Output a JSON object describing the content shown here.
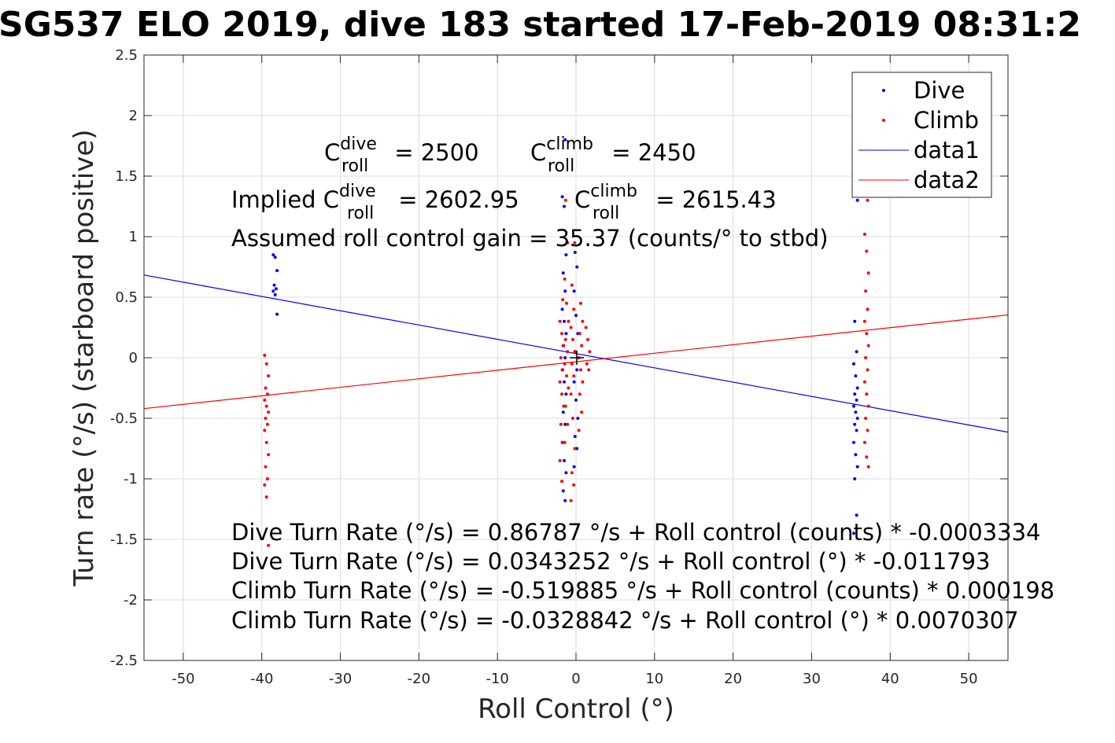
{
  "chart_data": {
    "type": "scatter",
    "title": "SG537 ELO 2019, dive 183 started 17-Feb-2019 08:31:2",
    "xlabel": "Roll Control (°)",
    "ylabel": "Turn rate (°/s) (starboard positive)",
    "xlim": [
      -55,
      55
    ],
    "ylim": [
      -2.5,
      2.5
    ],
    "xticks": [
      -50,
      -40,
      -30,
      -20,
      -10,
      0,
      10,
      20,
      30,
      40,
      50
    ],
    "yticks": [
      -2.5,
      -2,
      -1.5,
      -1,
      -0.5,
      0,
      0.5,
      1,
      1.5,
      2,
      2.5
    ],
    "grid": true,
    "legend_location": "top-right",
    "legend": [
      "Dive",
      "Climb",
      "data1",
      "data2"
    ],
    "colors": {
      "dive": "#0000ff",
      "climb": "#ff0000"
    },
    "series": [
      {
        "name": "Dive",
        "kind": "points",
        "clusters": [
          {
            "x": -38.3,
            "y_values": [
              0.85,
              0.83,
              0.72,
              0.6,
              0.57,
              0.55,
              0.52,
              0.36
            ]
          },
          {
            "x": -1.5,
            "y_values": [
              1.8,
              1.33,
              1.25,
              0.85,
              0.7,
              0.55,
              0.4,
              0.3,
              0.2,
              0.1,
              0.0,
              -0.1,
              -0.2,
              -0.3,
              -0.45,
              -0.55,
              -0.7,
              -0.85,
              -0.95,
              -1.1,
              -1.18
            ]
          },
          {
            "x": 0,
            "y_values": [
              0.87,
              0.75,
              0.55,
              0.35,
              0.2,
              0.05,
              -0.1,
              -0.2,
              -0.35,
              -0.5,
              -0.65,
              -0.75,
              -0.9
            ]
          },
          {
            "x": 35.6,
            "y_values": [
              1.3,
              0.3,
              0.05,
              -0.05,
              -0.15,
              -0.25,
              -0.3,
              -0.35,
              -0.4,
              -0.45,
              -0.5,
              -0.55,
              -0.6,
              -0.7,
              -0.8,
              -0.9,
              -1.0,
              -1.3,
              -1.45
            ]
          }
        ]
      },
      {
        "name": "Climb",
        "kind": "points",
        "clusters": [
          {
            "x": -39.4,
            "y_values": [
              0.02,
              -0.05,
              -0.15,
              -0.25,
              -0.3,
              -0.35,
              -0.4,
              -0.45,
              -0.5,
              -0.55,
              -0.6,
              -0.7,
              -0.8,
              -0.9,
              -1.0,
              -1.05,
              -1.15,
              -1.55
            ]
          },
          {
            "x": -1.8,
            "y_values": [
              0.48,
              0.3,
              0.2,
              0.1,
              0.0,
              -0.1,
              -0.2,
              -0.3,
              -0.4,
              -0.55,
              -0.7,
              -0.85,
              -1.02
            ]
          },
          {
            "x": -1.2,
            "y_values": [
              1.3,
              0.95,
              0.65,
              0.45,
              0.3,
              0.15,
              0.05,
              -0.05,
              -0.15,
              -0.25,
              -0.4,
              -0.55,
              -0.7
            ]
          },
          {
            "x": -0.4,
            "y_values": [
              0.95,
              0.6,
              0.4,
              0.25,
              0.15,
              0.05,
              -0.05,
              -0.15,
              -0.3,
              -0.5,
              -0.75,
              -0.95,
              -1.05,
              -1.18
            ]
          },
          {
            "x": 0.6,
            "y_values": [
              0.45,
              0.3,
              0.2,
              0.1,
              0.0,
              -0.1,
              -0.2,
              -0.3,
              -0.45,
              -0.6
            ]
          },
          {
            "x": 1.5,
            "y_values": [
              0.25,
              0.15,
              0.05,
              -0.05,
              -0.1
            ]
          },
          {
            "x": 37.0,
            "y_values": [
              1.3,
              1.02,
              0.88,
              0.7,
              0.55,
              0.4,
              0.3,
              0.2,
              0.1,
              0.0,
              -0.1,
              -0.2,
              -0.3,
              -0.4,
              -0.5,
              -0.6,
              -0.7,
              -0.82,
              -0.9
            ]
          }
        ]
      },
      {
        "name": "data1",
        "kind": "line",
        "x": [
          -55,
          55
        ],
        "y": [
          0.683,
          -0.614
        ]
      },
      {
        "name": "data2",
        "kind": "line",
        "x": [
          -55,
          55
        ],
        "y": [
          -0.42,
          0.354
        ]
      }
    ],
    "annotations": {
      "c_roll_dive": {
        "base": "C",
        "sup": "dive",
        "sub": "roll",
        "rest": " = 2500"
      },
      "c_roll_climb": {
        "base": "C",
        "sup": "climb",
        "sub": "roll",
        "rest": " = 2450"
      },
      "implied_dive": {
        "prefix": "Implied C",
        "sup": "dive",
        "sub": "roll",
        "rest": " = 2602.95"
      },
      "implied_climb": {
        "base": "C",
        "sup": "climb",
        "sub": "roll",
        "rest": " = 2615.43"
      },
      "gain": "Assumed roll control gain = 35.37 (counts/° to stbd)",
      "equations": [
        "Dive Turn Rate (°/s) = 0.86787 °/s + Roll control (counts) * -0.0003334",
        "Dive Turn Rate (°/s) = 0.0343252 °/s + Roll control (°) * -0.011793",
        "Climb Turn Rate (°/s) = -0.519885 °/s + Roll control (counts) * 0.000198",
        "Climb Turn Rate (°/s) = -0.0328842 °/s + Roll control (°) * 0.0070307"
      ]
    }
  }
}
